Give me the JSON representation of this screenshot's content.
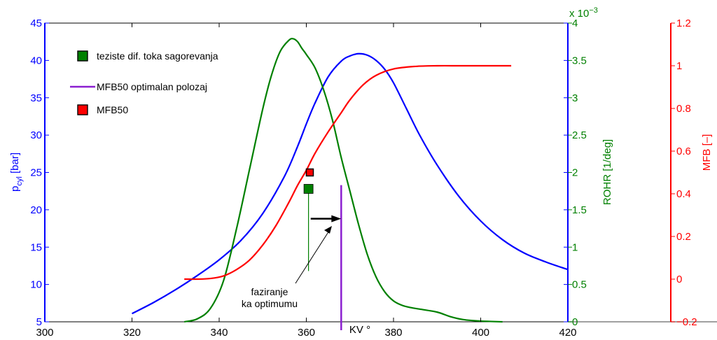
{
  "chart_data": {
    "type": "line",
    "title": "",
    "xlabel": "KV °",
    "xlim": [
      300,
      420
    ],
    "x_ticks": [
      "300",
      "320",
      "340",
      "360",
      "380",
      "400",
      "420"
    ],
    "axes": {
      "pressure": {
        "label_main": "p",
        "label_sub": "cyl",
        "label_rest": " [bar]",
        "ylim": [
          5,
          45
        ],
        "ticks": [
          "5",
          "10",
          "15",
          "20",
          "25",
          "30",
          "35",
          "40",
          "45"
        ],
        "color": "#0000ff"
      },
      "rohr": {
        "label": "ROHR [1/deg]",
        "multiplier_base": "x 10",
        "multiplier_exp": "−3",
        "ylim": [
          0,
          4
        ],
        "ticks": [
          "0",
          "0.5",
          "1",
          "1.5",
          "2",
          "2.5",
          "3",
          "3.5",
          "4"
        ],
        "color": "#008000"
      },
      "mfb": {
        "label": "MFB [–]",
        "ylim": [
          -0.2,
          1.2
        ],
        "ticks": [
          "−0.2",
          "0",
          "0.2",
          "0.4",
          "0.6",
          "0.8",
          "1",
          "1.2"
        ],
        "color": "#ff0000"
      }
    },
    "series": [
      {
        "name": "pcyl",
        "axis": "pressure",
        "color": "#0000ff",
        "x": [
          320,
          325,
          330,
          335,
          340,
          345,
          350,
          355,
          358,
          360,
          362,
          365,
          368,
          370,
          372,
          374,
          376,
          378,
          380,
          383,
          386,
          390,
          395,
          400,
          405,
          410,
          415,
          420
        ],
        "y": [
          6.1,
          7.6,
          9.3,
          11.2,
          13.3,
          15.9,
          19.5,
          24.5,
          28.5,
          31.5,
          34.3,
          37.8,
          39.9,
          40.6,
          40.9,
          40.7,
          40.0,
          38.8,
          37.0,
          33.5,
          30.0,
          26.0,
          21.8,
          18.5,
          16.0,
          14.2,
          13.0,
          12.0
        ]
      },
      {
        "name": "ROHR",
        "axis": "rohr",
        "color": "#008000",
        "x": [
          332,
          335,
          338,
          341,
          344,
          347,
          350,
          352,
          354,
          356,
          357,
          358,
          359,
          360,
          362,
          364,
          366,
          368,
          370,
          372,
          374,
          376,
          378,
          380,
          382,
          384,
          386,
          390,
          393,
          396,
          400,
          405
        ],
        "y": [
          0,
          0.04,
          0.18,
          0.55,
          1.25,
          2.05,
          2.85,
          3.3,
          3.62,
          3.77,
          3.79,
          3.75,
          3.66,
          3.58,
          3.4,
          3.1,
          2.7,
          2.2,
          1.75,
          1.3,
          0.9,
          0.6,
          0.4,
          0.28,
          0.22,
          0.19,
          0.17,
          0.13,
          0.07,
          0.03,
          0.01,
          0
        ]
      },
      {
        "name": "MFB",
        "axis": "mfb",
        "color": "#ff0000",
        "x": [
          332,
          335,
          338,
          341,
          344,
          347,
          350,
          353,
          356,
          358,
          360,
          362,
          365,
          368,
          370,
          373,
          376,
          380,
          385,
          390,
          395,
          400,
          407
        ],
        "y": [
          0,
          0,
          0.003,
          0.015,
          0.045,
          0.09,
          0.16,
          0.25,
          0.36,
          0.44,
          0.51,
          0.59,
          0.69,
          0.78,
          0.84,
          0.91,
          0.955,
          0.985,
          0.997,
          1.0,
          1.0,
          1.0,
          1.0
        ]
      }
    ],
    "markers": {
      "rohr_centroid": {
        "x": 360.5,
        "rohr": 1.78,
        "color": "#008000",
        "stem_to_rohr": 0.68
      },
      "mfb50": {
        "x": 360.8,
        "mfb": 0.5,
        "color": "#ff0000"
      }
    },
    "optimal_line": {
      "x": 368,
      "rohr_top": 1.83,
      "color": "#8b1fd0"
    },
    "arrow": {
      "x_from": 361,
      "x_to": 368,
      "rohr": 1.38
    },
    "annotation": {
      "lines": [
        "faziranje",
        "ka optimumu"
      ]
    },
    "legend": {
      "placement": "top-left",
      "items": [
        {
          "label": "teziste dif. toka sagorevanja",
          "symbol": "square",
          "color": "#008000"
        },
        {
          "label": "MFB50 optimalan polozaj",
          "symbol": "line",
          "color": "#8b1fd0"
        },
        {
          "label": "MFB50",
          "symbol": "square",
          "color": "#ff0000"
        }
      ]
    }
  }
}
